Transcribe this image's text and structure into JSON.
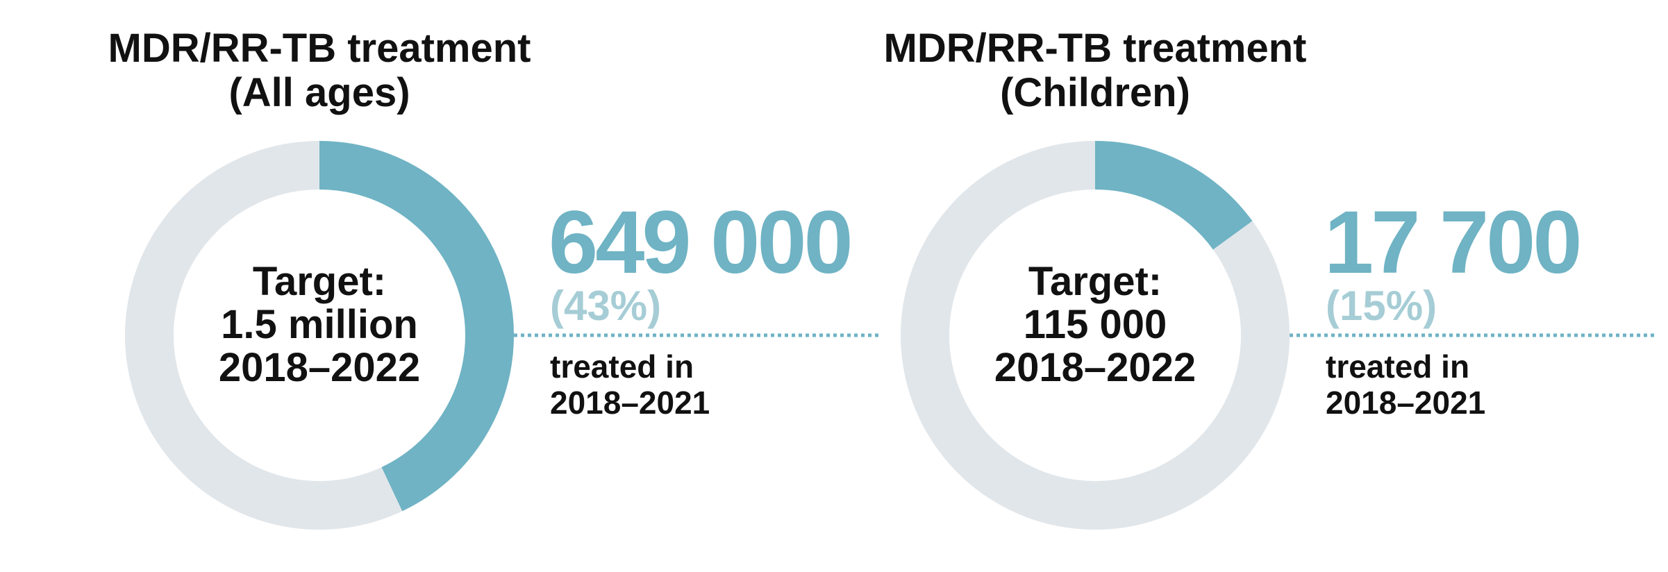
{
  "colors": {
    "accent": "#6fb3c4",
    "pct": "#a6cdd6",
    "track": "#e1e6ea",
    "text": "#111111"
  },
  "chart_data": [
    {
      "type": "pie",
      "title_line1": "MDR/RR-TB treatment",
      "title_line2": "(All ages)",
      "target_line1": "Target:",
      "target_line2": "1.5 million",
      "target_line3": "2018–2022",
      "value_label": "649 000",
      "percent_label": "(43%)",
      "caption_line1": "treated in",
      "caption_line2": "2018–2021",
      "slices": [
        {
          "label": "treated in 2018–2021",
          "value": 43
        },
        {
          "label": "remaining",
          "value": 57
        }
      ]
    },
    {
      "type": "pie",
      "title_line1": "MDR/RR-TB treatment",
      "title_line2": "(Children)",
      "target_line1": "Target:",
      "target_line2": "115 000",
      "target_line3": "2018–2022",
      "value_label": "17 700",
      "percent_label": "(15%)",
      "caption_line1": "treated in",
      "caption_line2": "2018–2021",
      "slices": [
        {
          "label": "treated in 2018–2021",
          "value": 15
        },
        {
          "label": "remaining",
          "value": 85
        }
      ]
    }
  ]
}
